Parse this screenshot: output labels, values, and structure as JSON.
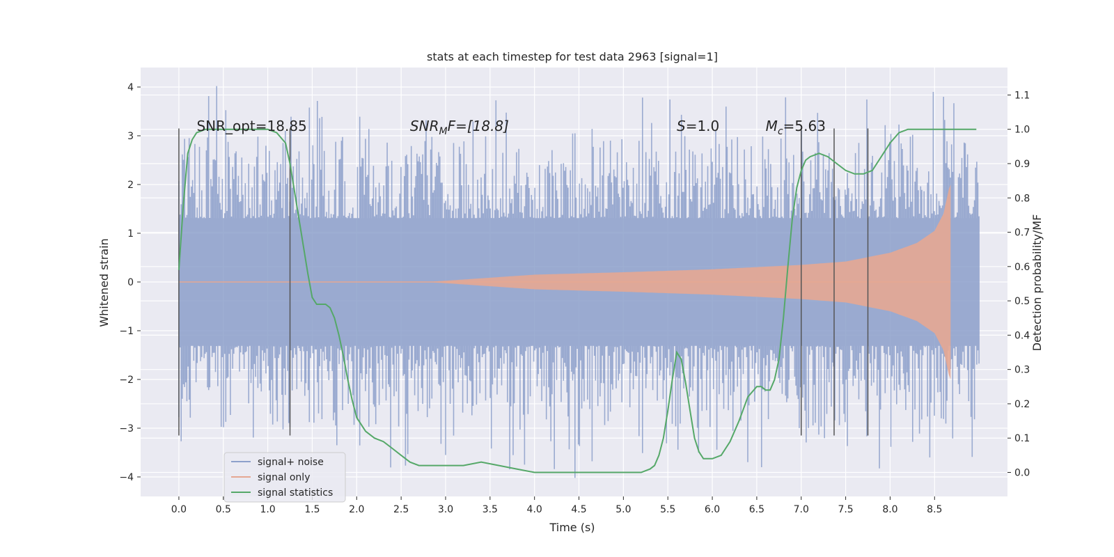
{
  "chart_data": {
    "type": "line",
    "title": "stats at each timestep for test data 2963 [signal=1]",
    "xlabel": "Time (s)",
    "ylabel": "Whitened strain",
    "y2label": "Detection probability/MF",
    "xlim": [
      -0.43,
      9.32
    ],
    "ylim": [
      -4.4,
      4.4
    ],
    "y2lim": [
      -0.07,
      1.18
    ],
    "x_ticks": [
      0.0,
      0.5,
      1.0,
      1.5,
      2.0,
      2.5,
      3.0,
      3.5,
      4.0,
      4.5,
      5.0,
      5.5,
      6.0,
      6.5,
      7.0,
      7.5,
      8.0,
      8.5
    ],
    "x_tick_labels": [
      "0.0",
      "0.5",
      "1.0",
      "1.5",
      "2.0",
      "2.5",
      "3.0",
      "3.5",
      "4.0",
      "4.5",
      "5.0",
      "5.5",
      "6.0",
      "6.5",
      "7.0",
      "7.5",
      "8.0",
      "8.5"
    ],
    "y_ticks": [
      4,
      3,
      2,
      1,
      0,
      -1,
      -2,
      -3,
      -4
    ],
    "y_tick_labels": [
      "4",
      "3",
      "2",
      "1",
      "0",
      "−1",
      "−2",
      "−3",
      "−4"
    ],
    "y2_ticks": [
      1.1,
      1.0,
      0.9,
      0.8,
      0.7,
      0.6,
      0.5,
      0.4,
      0.3,
      0.2,
      0.1,
      0.0
    ],
    "y2_tick_labels": [
      "1.1",
      "1.0",
      "0.9",
      "0.8",
      "0.7",
      "0.6",
      "0.5",
      "0.4",
      "0.3",
      "0.2",
      "0.1",
      "0.0"
    ],
    "noise_series": {
      "name": "signal+ noise",
      "color": "#8da0cb",
      "t_range": [
        0.0,
        9.0
      ],
      "n_samples": 700,
      "core_envelope": [
        -1.3,
        1.3
      ],
      "extremes": [
        [
          0.43,
          4.02
        ],
        [
          4.45,
          -4.02
        ],
        [
          3.0,
          -3.55
        ],
        [
          5.85,
          -3.5
        ],
        [
          6.55,
          -3.8
        ],
        [
          8.45,
          -3.6
        ],
        [
          8.48,
          3.9
        ],
        [
          8.6,
          3.8
        ],
        [
          1.78,
          -3.35
        ],
        [
          1.2,
          3.1
        ]
      ]
    },
    "signal_series": {
      "name": "signal only",
      "color": "#e5a792",
      "t_range": [
        2.8,
        8.68
      ],
      "amplitude": [
        [
          2.8,
          0.0
        ],
        [
          4.0,
          0.15
        ],
        [
          5.0,
          0.2
        ],
        [
          6.0,
          0.26
        ],
        [
          7.0,
          0.35
        ],
        [
          7.5,
          0.42
        ],
        [
          8.0,
          0.6
        ],
        [
          8.3,
          0.8
        ],
        [
          8.5,
          1.05
        ],
        [
          8.6,
          1.4
        ],
        [
          8.66,
          1.9
        ],
        [
          8.68,
          2.0
        ]
      ]
    },
    "stat_series": {
      "name": "signal statistics",
      "color": "#55a868",
      "x": [
        0.0,
        0.05,
        0.1,
        0.15,
        0.2,
        0.3,
        0.5,
        0.8,
        1.0,
        1.1,
        1.2,
        1.25,
        1.3,
        1.35,
        1.4,
        1.45,
        1.5,
        1.55,
        1.6,
        1.65,
        1.7,
        1.75,
        1.8,
        1.85,
        1.9,
        1.95,
        2.0,
        2.1,
        2.2,
        2.3,
        2.4,
        2.5,
        2.6,
        2.7,
        2.8,
        2.9,
        3.0,
        3.2,
        3.4,
        3.6,
        3.8,
        4.0,
        4.2,
        4.4,
        4.6,
        4.8,
        5.0,
        5.1,
        5.2,
        5.3,
        5.35,
        5.4,
        5.45,
        5.5,
        5.55,
        5.6,
        5.65,
        5.7,
        5.75,
        5.8,
        5.85,
        5.9,
        6.0,
        6.1,
        6.2,
        6.3,
        6.4,
        6.5,
        6.55,
        6.6,
        6.65,
        6.7,
        6.75,
        6.8,
        6.85,
        6.9,
        6.95,
        7.0,
        7.05,
        7.1,
        7.2,
        7.3,
        7.4,
        7.5,
        7.6,
        7.7,
        7.8,
        7.9,
        8.0,
        8.1,
        8.2,
        8.3,
        8.5,
        8.7,
        8.9,
        8.97
      ],
      "y": [
        0.59,
        0.78,
        0.93,
        0.97,
        0.99,
        1.0,
        1.0,
        1.0,
        1.0,
        0.99,
        0.96,
        0.9,
        0.82,
        0.74,
        0.66,
        0.58,
        0.51,
        0.49,
        0.49,
        0.49,
        0.48,
        0.45,
        0.4,
        0.34,
        0.27,
        0.21,
        0.16,
        0.12,
        0.1,
        0.09,
        0.07,
        0.05,
        0.03,
        0.02,
        0.02,
        0.02,
        0.02,
        0.02,
        0.03,
        0.02,
        0.01,
        0.0,
        0.0,
        0.0,
        0.0,
        0.0,
        0.0,
        0.0,
        0.0,
        0.01,
        0.02,
        0.05,
        0.1,
        0.18,
        0.27,
        0.35,
        0.33,
        0.26,
        0.18,
        0.1,
        0.06,
        0.04,
        0.04,
        0.05,
        0.09,
        0.15,
        0.22,
        0.25,
        0.25,
        0.24,
        0.24,
        0.27,
        0.33,
        0.45,
        0.6,
        0.74,
        0.83,
        0.88,
        0.91,
        0.92,
        0.93,
        0.92,
        0.9,
        0.88,
        0.87,
        0.87,
        0.88,
        0.92,
        0.96,
        0.99,
        1.0,
        1.0,
        1.0,
        1.0,
        1.0,
        1.0
      ]
    },
    "vlines_x": [
      0.0,
      1.25,
      7.0,
      7.37,
      7.75
    ],
    "vline_range": [
      -3.15,
      3.15
    ],
    "annotations": {
      "snr_opt": "SNR_opt=18.85",
      "snr_mf": [
        "SNR",
        "M",
        "F=[18.8]"
      ],
      "s_value": [
        "S",
        "=1.0"
      ],
      "mc": [
        "M",
        "c",
        "=5.63"
      ]
    },
    "annotation_positions": {
      "snr_opt": [
        0.2,
        3.1
      ],
      "snr_mf": [
        2.6,
        3.1
      ],
      "s_value": [
        5.6,
        3.1
      ],
      "mc": [
        6.6,
        3.1
      ]
    },
    "legend": {
      "placement": "lower-left",
      "entries": [
        {
          "label": "signal+ noise",
          "color": "#8da0cb"
        },
        {
          "label": "signal only",
          "color": "#e5a792"
        },
        {
          "label": "signal statistics",
          "color": "#55a868"
        }
      ]
    },
    "grid": true,
    "colors": {
      "plot_background": "#eaeaf2",
      "grid": "#ffffff",
      "vline": "#555555"
    }
  }
}
